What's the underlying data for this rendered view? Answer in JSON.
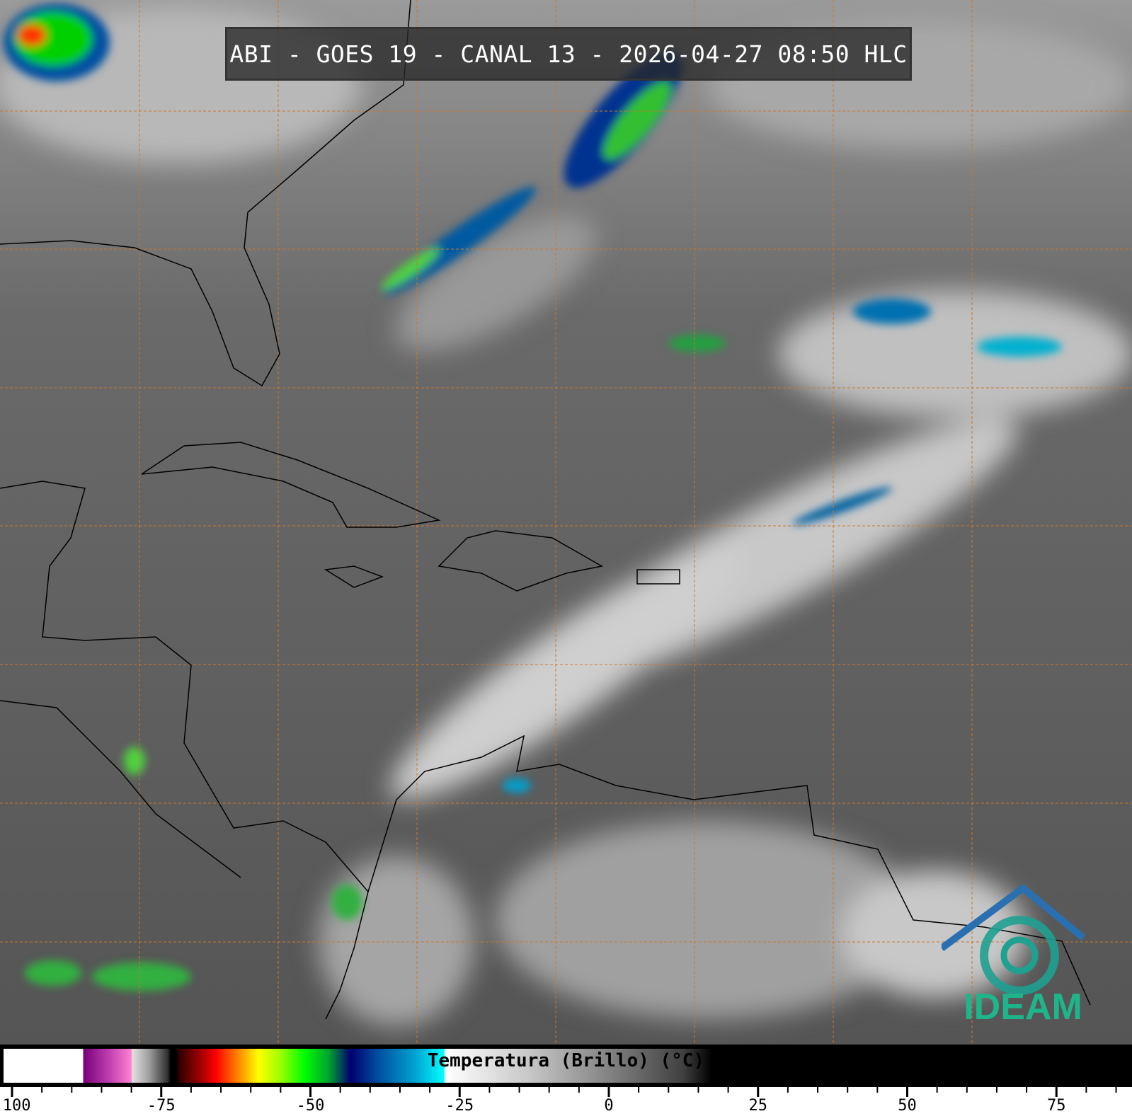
{
  "title": "ABI - GOES 19 - CANAL 13 - 2026-04-27 08:50 HLC",
  "colorbar": {
    "label": "Temperatura (Brillo) (°C)",
    "ticks": [
      "-100",
      "-75",
      "-50",
      "-25",
      "0",
      "25",
      "50",
      "75"
    ],
    "tick_values": [
      -100,
      -75,
      -50,
      -25,
      0,
      25,
      50,
      75
    ],
    "minor_step": 5
  },
  "logo": {
    "text": "IDEAM",
    "color": "#1fb58a"
  },
  "colors": {
    "grid": "#c87832",
    "background_ir": "#5a5a5a",
    "coastline": "#000000"
  }
}
